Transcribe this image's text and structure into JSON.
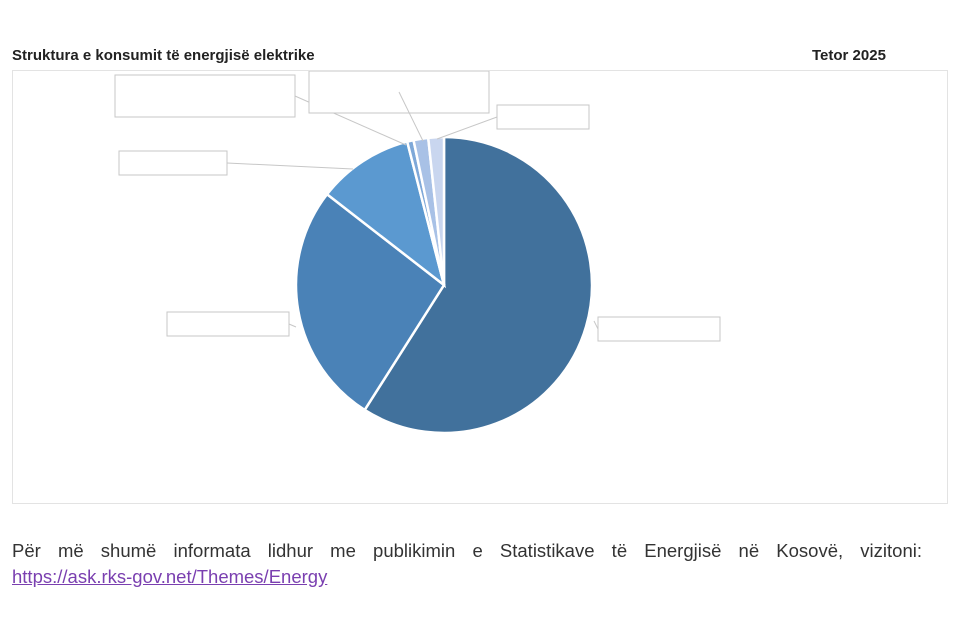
{
  "header": {
    "title": "Struktura e konsumit të energjisë elektrike",
    "period": "Tetor 2025"
  },
  "chart_data": {
    "type": "pie",
    "title": "",
    "slices": [
      {
        "label": "",
        "value": 59.0,
        "color": "#41719c"
      },
      {
        "label": "",
        "value": 26.5,
        "color": "#4a82b7"
      },
      {
        "label": "",
        "value": 10.5,
        "color": "#5b99d0"
      },
      {
        "label": "",
        "value": 0.7,
        "color": "#7ea8d8"
      },
      {
        "label": "",
        "value": 1.6,
        "color": "#a8c1e6"
      },
      {
        "label": "",
        "value": 1.7,
        "color": "#c9d6ef"
      }
    ],
    "start_angle_deg": 0,
    "direction": "clockwise",
    "legend": "none"
  },
  "footer": {
    "text": "Për më shumë informata lidhur me publikimin e Statistikave të Energjisë në Kosovë, vizitoni:",
    "link": "https://ask.rks-gov.net/Themes/Energy"
  }
}
